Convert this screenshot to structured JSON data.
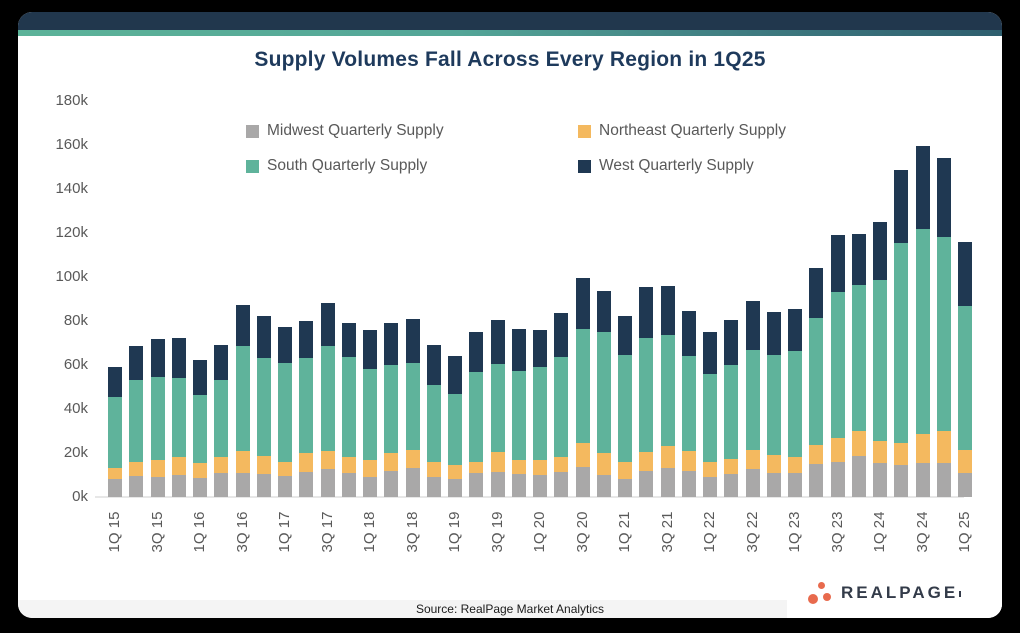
{
  "chart_data": {
    "type": "bar",
    "stacked": true,
    "title": "Supply Volumes Fall Across Every Region in 1Q25",
    "xlabel": "",
    "ylabel": "",
    "unit": "thousands of units (k)",
    "ylim": [
      0,
      180
    ],
    "grid": false,
    "legend_position": "top",
    "y_tick_labels": [
      "0k",
      "20k",
      "40k",
      "60k",
      "80k",
      "100k",
      "120k",
      "140k",
      "160k",
      "180k"
    ],
    "x_tick_labels": [
      "1Q 15",
      "3Q 15",
      "1Q 16",
      "3Q 16",
      "1Q 17",
      "3Q 17",
      "1Q 18",
      "3Q 18",
      "1Q 19",
      "3Q 19",
      "1Q 20",
      "3Q 20",
      "1Q 21",
      "3Q 21",
      "1Q 22",
      "3Q 22",
      "1Q 23",
      "3Q 23",
      "1Q 24",
      "3Q 24",
      "1Q 25"
    ],
    "categories": [
      "1Q 15",
      "2Q 15",
      "3Q 15",
      "4Q 15",
      "1Q 16",
      "2Q 16",
      "3Q 16",
      "4Q 16",
      "1Q 17",
      "2Q 17",
      "3Q 17",
      "4Q 17",
      "1Q 18",
      "2Q 18",
      "3Q 18",
      "4Q 18",
      "1Q 19",
      "2Q 19",
      "3Q 19",
      "4Q 19",
      "1Q 20",
      "2Q 20",
      "3Q 20",
      "4Q 20",
      "1Q 21",
      "2Q 21",
      "3Q 21",
      "4Q 21",
      "1Q 22",
      "2Q 22",
      "3Q 22",
      "4Q 22",
      "1Q 23",
      "2Q 23",
      "3Q 23",
      "4Q 23",
      "1Q 24",
      "2Q 24",
      "3Q 24",
      "4Q 24",
      "1Q 25"
    ],
    "series": [
      {
        "name": "Midwest Quarterly Supply",
        "color": "#A9A8A8",
        "values": [
          8,
          9.5,
          9,
          10,
          8.5,
          11,
          11,
          10.5,
          9.5,
          11.5,
          12.5,
          11,
          9,
          12,
          13,
          9,
          8,
          11,
          11.5,
          10.5,
          10,
          11.5,
          13.5,
          10,
          8,
          12,
          13,
          12,
          9,
          10.5,
          12.5,
          11,
          11,
          15,
          16,
          18.5,
          15.5,
          14.5,
          15.5,
          15.5,
          11
        ]
      },
      {
        "name": "Northeast Quarterly Supply",
        "color": "#F4B95F",
        "values": [
          5,
          6.5,
          8,
          8,
          7,
          7,
          10,
          8,
          6.5,
          8.5,
          8.5,
          7,
          8,
          8,
          8.5,
          7,
          6.5,
          5,
          9,
          6.5,
          7,
          6.5,
          11,
          10,
          8,
          8.5,
          10,
          9,
          7,
          7,
          9,
          8,
          7,
          8.5,
          11,
          11.5,
          10,
          10,
          13,
          14.5,
          10.5
        ]
      },
      {
        "name": "South Quarterly Supply",
        "color": "#5FB39B",
        "values": [
          32.5,
          37,
          37.5,
          36,
          31,
          35,
          47.5,
          44.5,
          45,
          43,
          47.5,
          45.5,
          41,
          40,
          39.5,
          35,
          32.5,
          41,
          40,
          40.5,
          42,
          45.5,
          52,
          55,
          48.5,
          52,
          50.5,
          43,
          40,
          42.5,
          45.5,
          45.5,
          48.5,
          58,
          66,
          66.5,
          73,
          91,
          93.5,
          88,
          65.5
        ]
      },
      {
        "name": "West Quarterly Supply",
        "color": "#1F3852",
        "values": [
          13.5,
          15.5,
          17.5,
          18.5,
          16,
          16,
          19,
          19.5,
          16.5,
          17,
          19.5,
          15.5,
          18,
          19,
          20,
          18,
          17,
          18,
          20,
          19,
          17,
          20,
          23,
          18.5,
          18,
          23,
          22.5,
          20.5,
          19,
          20.5,
          22,
          19.5,
          19,
          22.5,
          26,
          23,
          26.5,
          33,
          37.5,
          36,
          29
        ]
      }
    ]
  },
  "footer": {
    "source": "Source: RealPage Market Analytics"
  },
  "logo": {
    "wordmark": "REALPAGE",
    "dots_color": "#E86A4D"
  },
  "theme": {
    "header_bar_color": "#21374D",
    "accent_left": "#5CB399",
    "accent_right": "#2E5E6E",
    "title_color": "#1E3A5C",
    "axis_text_color": "#595959",
    "footer_band_color": "#F4F4F4"
  }
}
